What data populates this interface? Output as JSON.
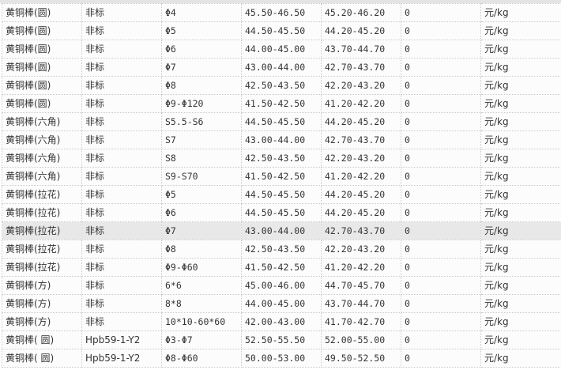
{
  "table": {
    "highlighted_row": 12,
    "rows": [
      [
        "黄铜棒(圆)",
        "非标",
        "Φ4",
        "45.50-46.50",
        "45.20-46.20",
        "0",
        "元/kg"
      ],
      [
        "黄铜棒(圆)",
        "非标",
        "Φ5",
        "44.50-45.50",
        "44.20-45.20",
        "0",
        "元/kg"
      ],
      [
        "黄铜棒(圆)",
        "非标",
        "Φ6",
        "44.00-45.00",
        "43.70-44.70",
        "0",
        "元/kg"
      ],
      [
        "黄铜棒(圆)",
        "非标",
        "Φ7",
        "43.00-44.00",
        "42.70-43.70",
        "0",
        "元/kg"
      ],
      [
        "黄铜棒(圆)",
        "非标",
        "Φ8",
        "42.50-43.50",
        "42.20-43.20",
        "0",
        "元/kg"
      ],
      [
        "黄铜棒(圆)",
        "非标",
        "Φ9-Φ120",
        "41.50-42.50",
        "41.20-42.20",
        "0",
        "元/kg"
      ],
      [
        "黄铜棒(六角)",
        "非标",
        "S5.5-S6",
        "44.50-45.50",
        "44.20-45.20",
        "0",
        "元/kg"
      ],
      [
        "黄铜棒(六角)",
        "非标",
        "S7",
        "43.00-44.00",
        "42.70-43.70",
        "0",
        "元/kg"
      ],
      [
        "黄铜棒(六角)",
        "非标",
        "S8",
        "42.50-43.50",
        "42.20-43.20",
        "0",
        "元/kg"
      ],
      [
        "黄铜棒(六角)",
        "非标",
        "S9-S70",
        "41.50-42.50",
        "41.20-42.20",
        "0",
        "元/kg"
      ],
      [
        "黄铜棒(拉花)",
        "非标",
        "Φ5",
        "44.50-45.50",
        "44.20-45.20",
        "0",
        "元/kg"
      ],
      [
        "黄铜棒(拉花)",
        "非标",
        "Φ6",
        "44.50-45.50",
        "44.20-45.20",
        "0",
        "元/kg"
      ],
      [
        "黄铜棒(拉花)",
        "非标",
        "Φ7",
        "43.00-44.00",
        "42.70-43.70",
        "0",
        "元/kg"
      ],
      [
        "黄铜棒(拉花)",
        "非标",
        "Φ8",
        "42.50-43.50",
        "42.20-43.20",
        "0",
        "元/kg"
      ],
      [
        "黄铜棒(拉花)",
        "非标",
        "Φ9-Φ60",
        "41.50-42.50",
        "41.20-42.20",
        "0",
        "元/kg"
      ],
      [
        "黄铜棒(方)",
        "非标",
        "6*6",
        "45.00-46.00",
        "44.70-45.70",
        "0",
        "元/kg"
      ],
      [
        "黄铜棒(方)",
        "非标",
        "8*8",
        "44.00-45.00",
        "43.70-44.70",
        "0",
        "元/kg"
      ],
      [
        "黄铜棒(方)",
        "非标",
        "10*10-60*60",
        "42.00-43.00",
        "41.70-42.70",
        "0",
        "元/kg"
      ],
      [
        "黄铜棒( 圆)",
        "Hpb59-1-Y2",
        "Φ3-Φ7",
        "52.50-55.50",
        "52.00-55.00",
        "0",
        "元/kg"
      ],
      [
        "黄铜棒( 圆)",
        "Hpb59-1-Y2",
        "Φ8-Φ60",
        "50.00-53.00",
        "49.50-52.50",
        "0",
        "元/kg"
      ]
    ]
  }
}
